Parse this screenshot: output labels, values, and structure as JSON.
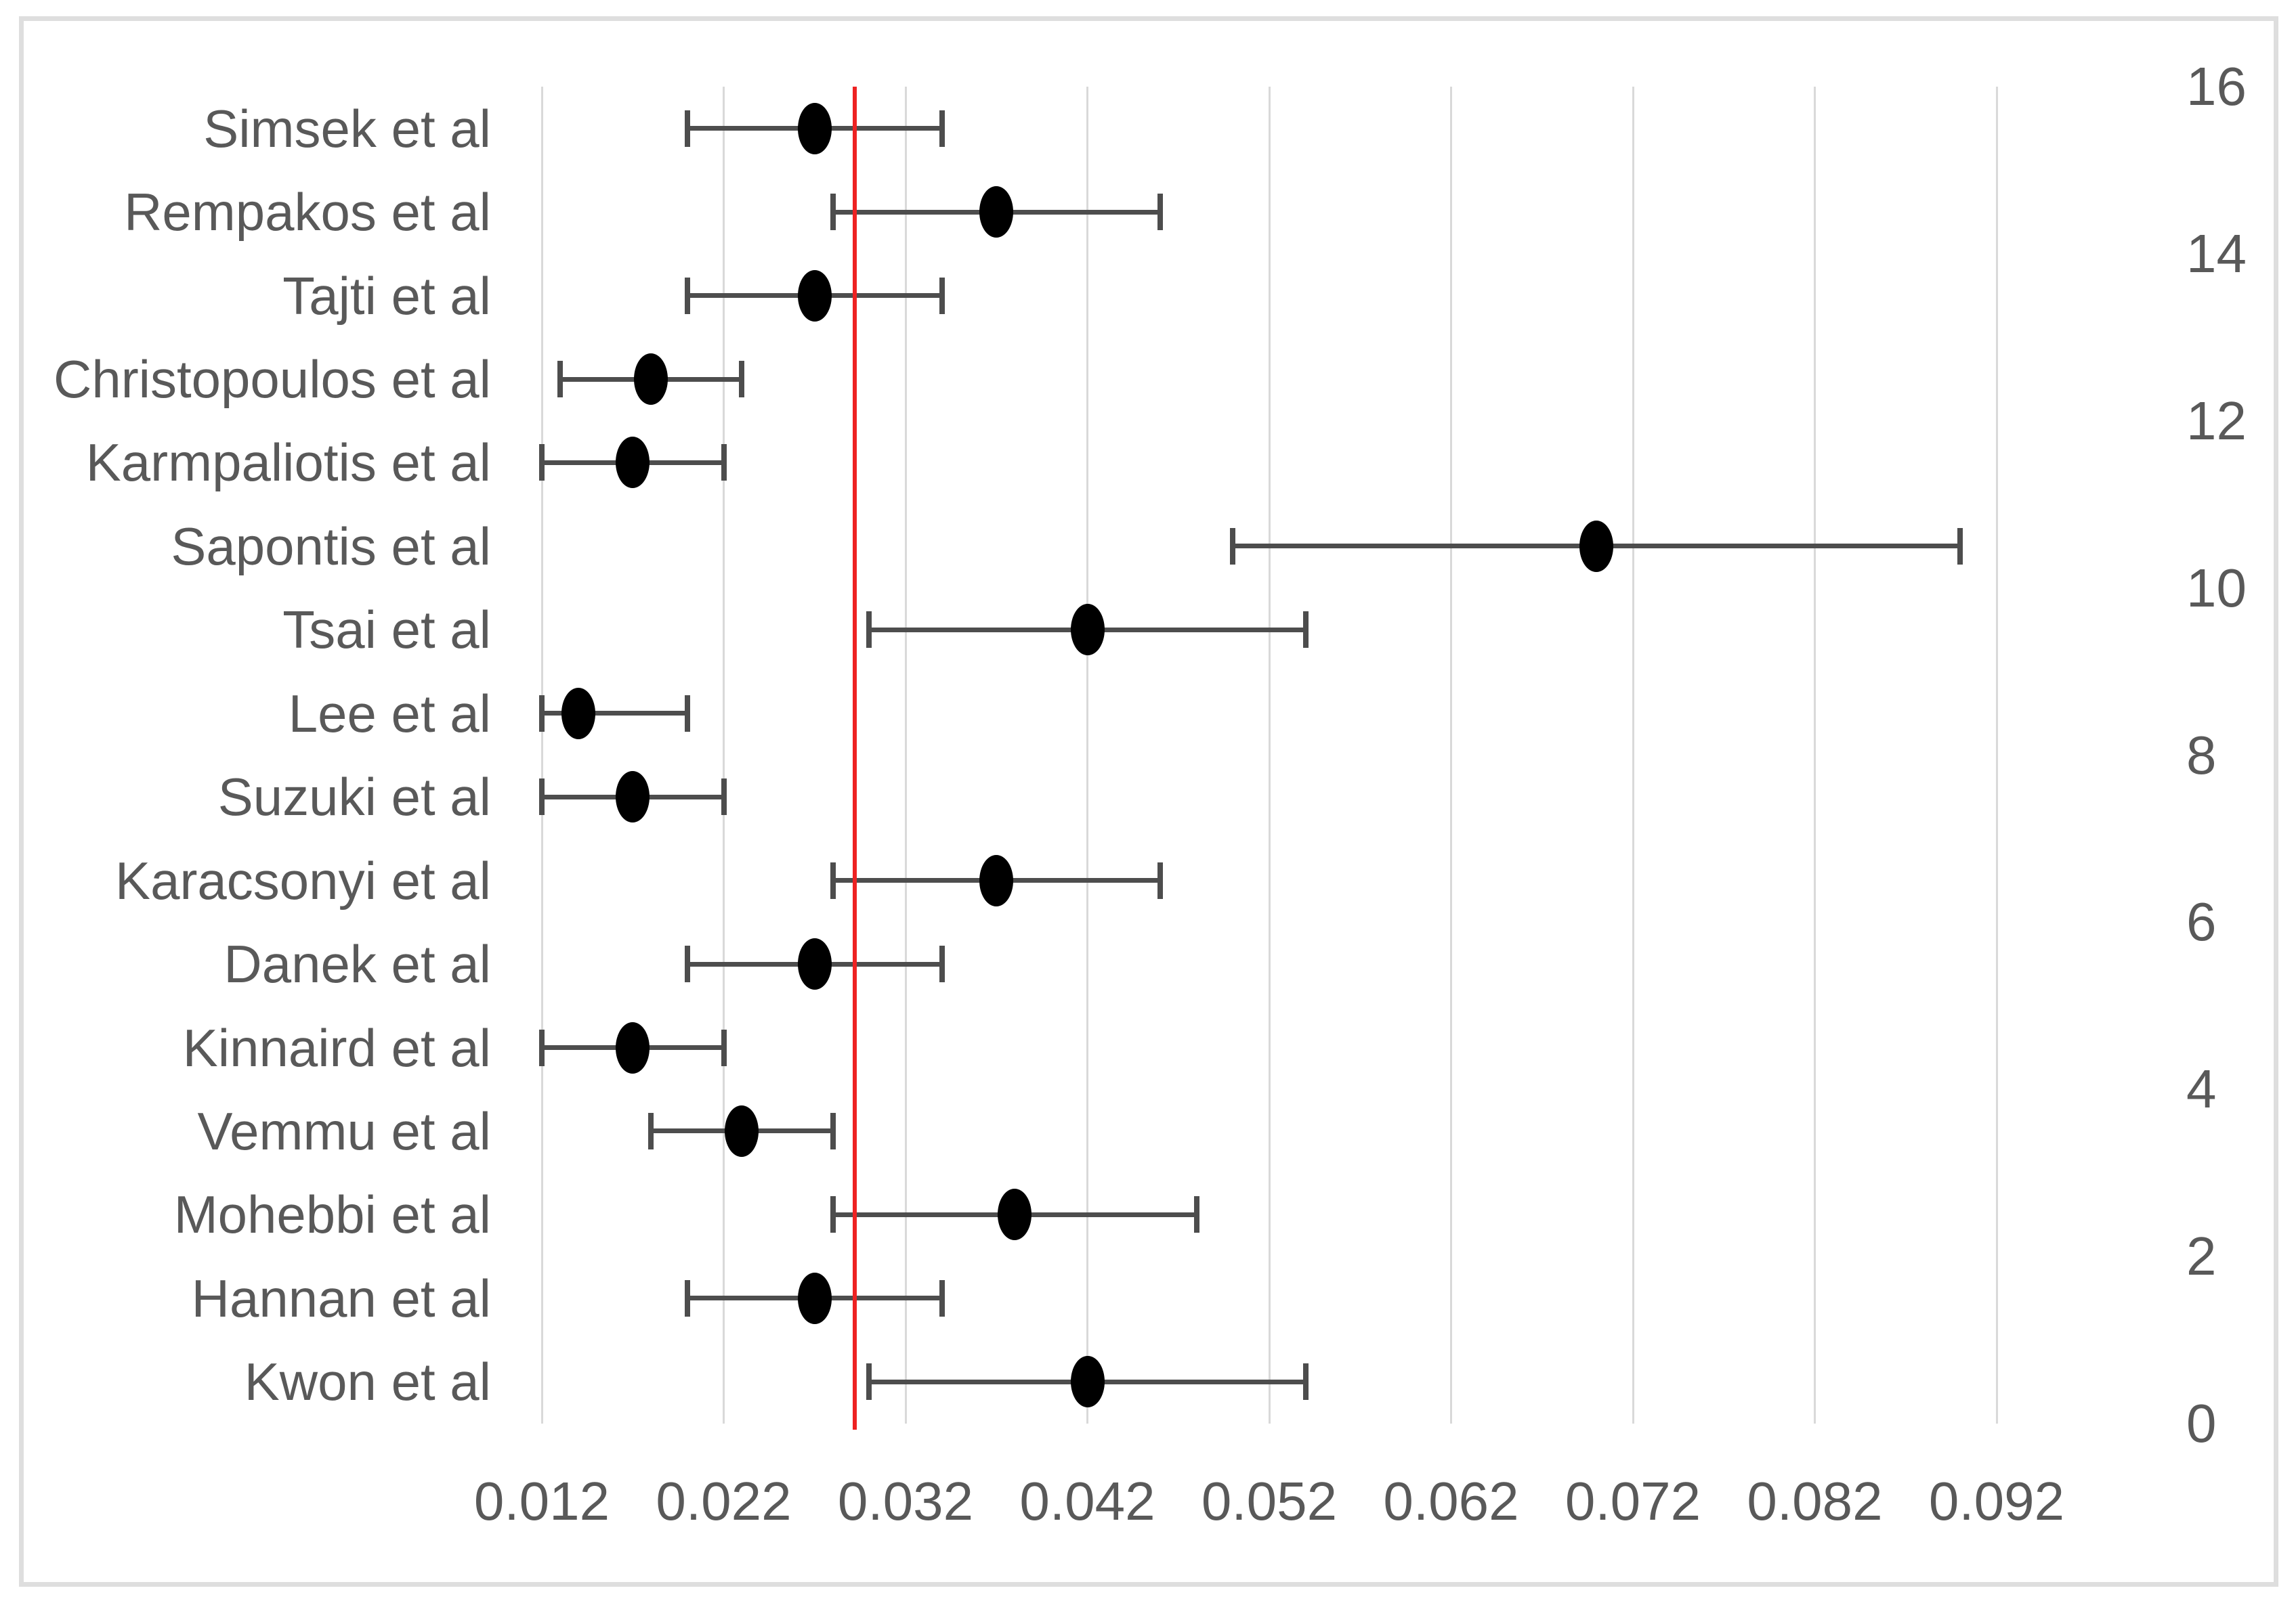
{
  "chart_data": {
    "type": "scatter",
    "variant": "forest-plot-with-error-bars",
    "title": "",
    "xlabel": "",
    "ylabel": "",
    "legend": "none",
    "grid": "vertical-on",
    "studies": [
      {
        "label": "Simsek et al",
        "value": 0.027,
        "low": 0.02,
        "high": 0.034
      },
      {
        "label": "Rempakos et al",
        "value": 0.037,
        "low": 0.028,
        "high": 0.046
      },
      {
        "label": "Tajti et al",
        "value": 0.027,
        "low": 0.02,
        "high": 0.034
      },
      {
        "label": "Christopoulos et al",
        "value": 0.018,
        "low": 0.013,
        "high": 0.023
      },
      {
        "label": "Karmpaliotis et al",
        "value": 0.017,
        "low": 0.012,
        "high": 0.022
      },
      {
        "label": "Sapontis et al",
        "value": 0.07,
        "low": 0.05,
        "high": 0.09
      },
      {
        "label": "Tsai et al",
        "value": 0.042,
        "low": 0.03,
        "high": 0.054
      },
      {
        "label": "Lee et al",
        "value": 0.014,
        "low": 0.012,
        "high": 0.02
      },
      {
        "label": "Suzuki et al",
        "value": 0.017,
        "low": 0.012,
        "high": 0.022
      },
      {
        "label": "Karacsonyi et al",
        "value": 0.037,
        "low": 0.028,
        "high": 0.046
      },
      {
        "label": "Danek et al",
        "value": 0.027,
        "low": 0.02,
        "high": 0.034
      },
      {
        "label": "Kinnaird et al",
        "value": 0.017,
        "low": 0.012,
        "high": 0.022
      },
      {
        "label": "Vemmu et al",
        "value": 0.023,
        "low": 0.018,
        "high": 0.028
      },
      {
        "label": "Mohebbi et al",
        "value": 0.038,
        "low": 0.028,
        "high": 0.048
      },
      {
        "label": "Hannan et al",
        "value": 0.027,
        "low": 0.02,
        "high": 0.034
      },
      {
        "label": "Kwon et al",
        "value": 0.042,
        "low": 0.03,
        "high": 0.054
      }
    ],
    "x_axis": {
      "min": 0.012,
      "max": 0.092,
      "step": 0.01,
      "tick_values": [
        0.012,
        0.022,
        0.032,
        0.042,
        0.052,
        0.062,
        0.072,
        0.082,
        0.092
      ],
      "tick_labels": [
        "0.012",
        "0.022",
        "0.032",
        "0.042",
        "0.052",
        "0.062",
        "0.072",
        "0.082",
        "0.092"
      ]
    },
    "y_axis": {
      "position": "right",
      "min": 0,
      "max": 16,
      "step": 2,
      "tick_values": [
        16,
        14,
        12,
        10,
        8,
        6,
        4,
        2,
        0
      ],
      "tick_labels": [
        "16",
        "14",
        "12",
        "10",
        "8",
        "6",
        "4",
        "2",
        "0"
      ]
    },
    "reference_line": {
      "value": 0.0292,
      "color": "#ee2222"
    },
    "colors": {
      "point": "#000000",
      "error_bar": "#4d4d4d",
      "gridline": "#d9d9d9",
      "text": "#595959",
      "frame_border": "#dedede",
      "background": "#ffffff"
    }
  }
}
